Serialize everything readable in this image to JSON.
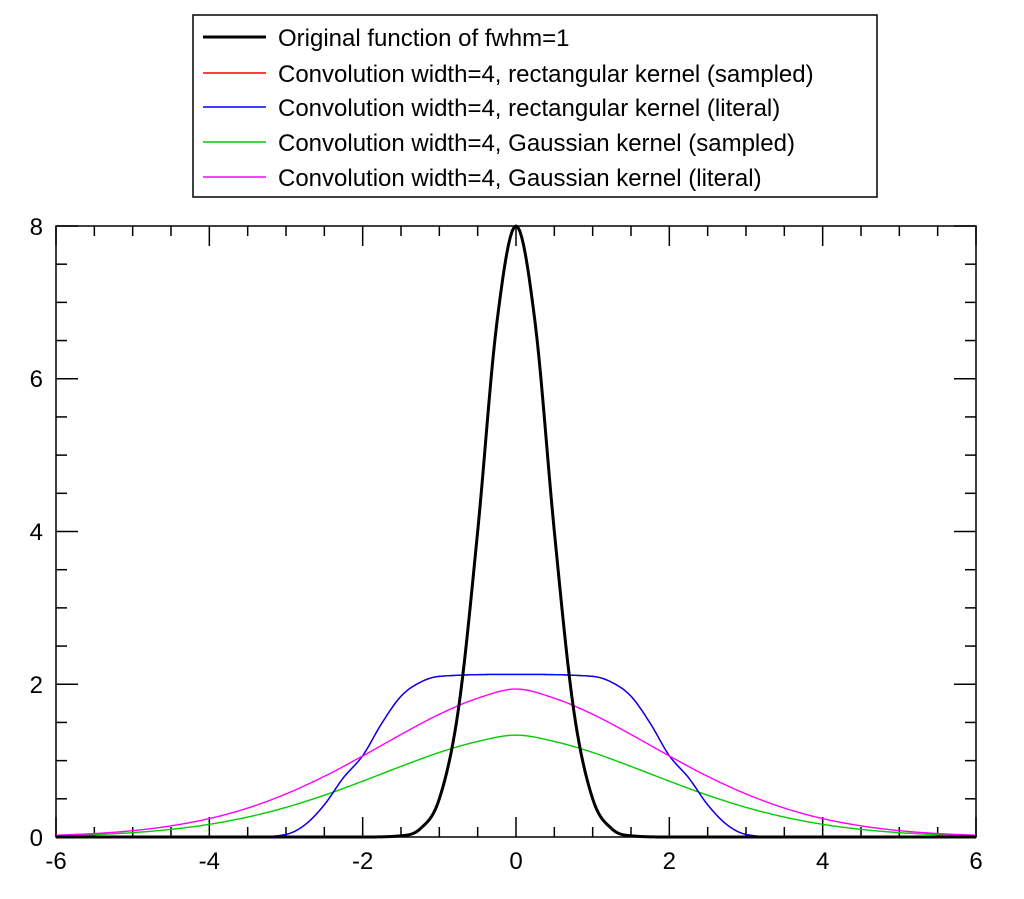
{
  "chart_data": {
    "type": "line",
    "title": "",
    "xlabel": "",
    "ylabel": "",
    "xlim": [
      -6,
      6
    ],
    "ylim": [
      0,
      8
    ],
    "x_ticks": [
      "-6",
      "-4",
      "-2",
      "0",
      "2",
      "4",
      "6"
    ],
    "y_ticks": [
      "0",
      "2",
      "4",
      "6",
      "8"
    ],
    "grid": false,
    "legend_placement": "top",
    "series": [
      {
        "name": "Original function of fwhm=1",
        "color": "#000000",
        "x": [
          -6,
          -3,
          -2,
          -1.5,
          -1.25,
          -1,
          -0.75,
          -0.5,
          -0.25,
          0,
          0.25,
          0.5,
          0.75,
          1,
          1.25,
          1.5,
          2,
          3,
          6
        ],
        "y": [
          0,
          0,
          0,
          0.016,
          0.107,
          0.5,
          1.68,
          4.0,
          6.729,
          8.0,
          6.729,
          4.0,
          1.68,
          0.5,
          0.107,
          0.016,
          0,
          0,
          0
        ]
      },
      {
        "name": "Convolution width=4, rectangular kernel (sampled)",
        "color": "#ff0000",
        "x": [
          -6,
          -3.5,
          -3,
          -2.75,
          -2.5,
          -2.25,
          -2,
          -1.75,
          -1.5,
          -1.25,
          -1,
          0,
          1,
          1.25,
          1.5,
          1.75,
          2,
          2.25,
          2.5,
          2.75,
          3,
          3.5,
          6
        ],
        "y": [
          0,
          0,
          0.034,
          0.162,
          0.422,
          0.778,
          1.064,
          1.49,
          1.843,
          2.025,
          2.103,
          2.129,
          2.103,
          2.025,
          1.843,
          1.49,
          1.064,
          0.778,
          0.422,
          0.162,
          0.034,
          0,
          0
        ]
      },
      {
        "name": "Convolution width=4, rectangular kernel (literal)",
        "color": "#0000ff",
        "x": [
          -6,
          -3.5,
          -3,
          -2.75,
          -2.5,
          -2.25,
          -2,
          -1.75,
          -1.5,
          -1.25,
          -1,
          0,
          1,
          1.25,
          1.5,
          1.75,
          2,
          2.25,
          2.5,
          2.75,
          3,
          3.5,
          6
        ],
        "y": [
          0,
          0,
          0.034,
          0.162,
          0.422,
          0.778,
          1.064,
          1.49,
          1.843,
          2.025,
          2.103,
          2.129,
          2.103,
          2.025,
          1.843,
          1.49,
          1.064,
          0.778,
          0.422,
          0.162,
          0.034,
          0,
          0
        ]
      },
      {
        "name": "Convolution width=4, Gaussian kernel (sampled)",
        "color": "#00cc00",
        "x": [
          -6,
          -5.5,
          -5,
          -4.5,
          -4,
          -3.5,
          -3,
          -2.5,
          -2,
          -1.5,
          -1,
          -0.5,
          0,
          0.5,
          1,
          1.5,
          2,
          2.5,
          3,
          3.5,
          4,
          4.5,
          5,
          5.5,
          6
        ],
        "y": [
          0.016,
          0.031,
          0.057,
          0.1,
          0.166,
          0.261,
          0.388,
          0.547,
          0.731,
          0.924,
          1.107,
          1.251,
          1.334,
          1.251,
          1.107,
          0.924,
          0.731,
          0.547,
          0.388,
          0.261,
          0.166,
          0.1,
          0.057,
          0.031,
          0.016
        ]
      },
      {
        "name": "Convolution width=4, Gaussian kernel (literal)",
        "color": "#ff00ff",
        "x": [
          -6,
          -5.5,
          -5,
          -4.5,
          -4,
          -3.5,
          -3,
          -2.5,
          -2,
          -1.5,
          -1,
          -0.5,
          0,
          0.5,
          1,
          1.5,
          2,
          2.5,
          3,
          3.5,
          4,
          4.5,
          5,
          5.5,
          6
        ],
        "y": [
          0.023,
          0.045,
          0.083,
          0.146,
          0.241,
          0.379,
          0.564,
          0.794,
          1.061,
          1.342,
          1.607,
          1.817,
          1.937,
          1.817,
          1.607,
          1.342,
          1.061,
          0.794,
          0.564,
          0.379,
          0.241,
          0.146,
          0.083,
          0.045,
          0.023
        ]
      }
    ]
  }
}
